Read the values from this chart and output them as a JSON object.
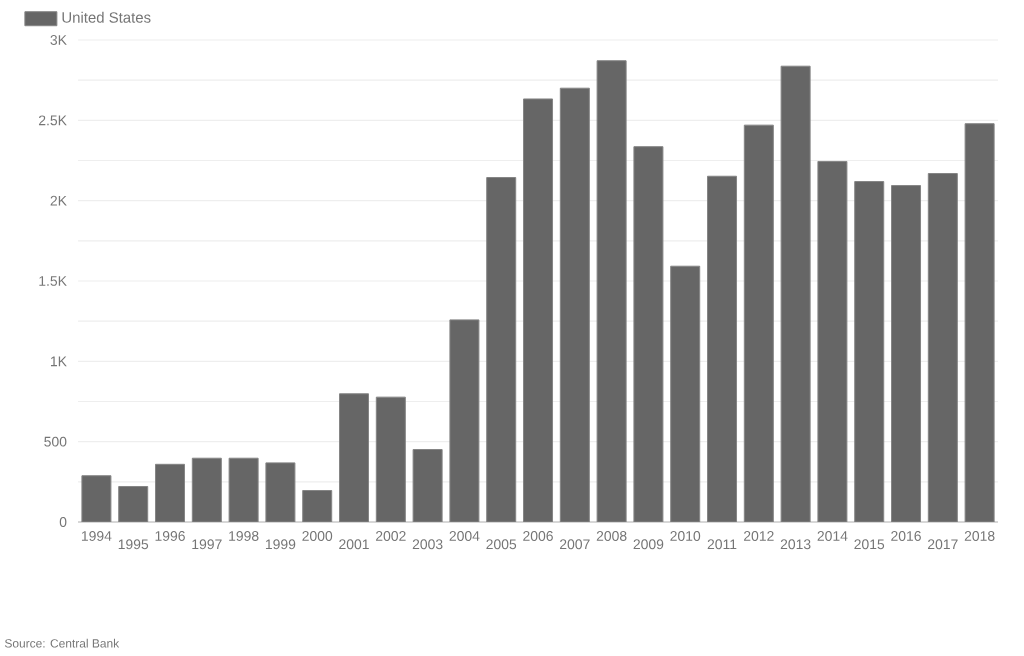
{
  "chart_data": {
    "type": "bar",
    "categories": [
      "1994",
      "1995",
      "1996",
      "1997",
      "1998",
      "1999",
      "2000",
      "2001",
      "2002",
      "2003",
      "2004",
      "2005",
      "2006",
      "2007",
      "2008",
      "2009",
      "2010",
      "2011",
      "2012",
      "2013",
      "2014",
      "2015",
      "2016",
      "2017",
      "2018"
    ],
    "series": [
      {
        "name": "United States",
        "color": "#666666",
        "values": [
          288,
          221,
          359,
          397,
          397,
          368,
          196,
          798,
          777,
          451,
          1258,
          2144,
          2633,
          2700,
          2871,
          2336,
          1592,
          2152,
          2470,
          2837,
          2244,
          2119,
          2094,
          2169,
          2479
        ]
      }
    ],
    "ylim": [
      0,
      3000
    ],
    "yticks": [
      0,
      {
        "value": 250,
        "label": null
      },
      500,
      {
        "value": 750,
        "label": null
      },
      {
        "value": 1000,
        "label": "1K"
      },
      {
        "value": 1250,
        "label": null
      },
      {
        "value": 1500,
        "label": "1.5K"
      },
      {
        "value": 1750,
        "label": null
      },
      {
        "value": 2000,
        "label": "2K"
      },
      {
        "value": 2250,
        "label": null
      },
      {
        "value": 2500,
        "label": "2.5K"
      },
      {
        "value": 2750,
        "label": null
      },
      {
        "value": 3000,
        "label": "3K"
      }
    ],
    "grid": "y",
    "legend": "top left",
    "annotations": [
      "Source: Central Bank"
    ]
  }
}
